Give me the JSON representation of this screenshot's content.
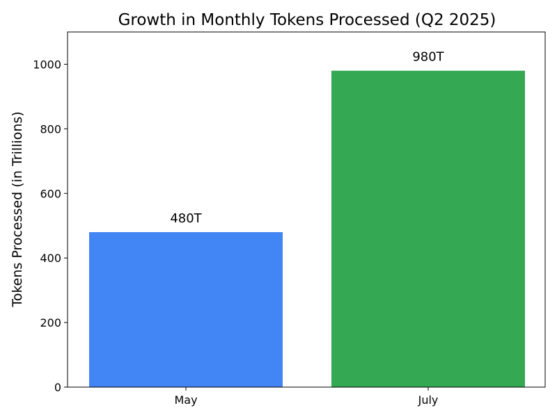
{
  "chart_data": {
    "type": "bar",
    "title": "Growth in Monthly Tokens Processed (Q2 2025)",
    "xlabel": "",
    "ylabel": "Tokens Processed (in Trillions)",
    "categories": [
      "May",
      "July"
    ],
    "values": [
      480,
      980
    ],
    "data_labels": [
      "480T",
      "980T"
    ],
    "colors": [
      "#4285F4",
      "#34A853"
    ],
    "ylim": [
      0,
      1100
    ],
    "yticks": [
      0,
      200,
      400,
      600,
      800,
      1000
    ],
    "grid": false,
    "legend": "none"
  }
}
